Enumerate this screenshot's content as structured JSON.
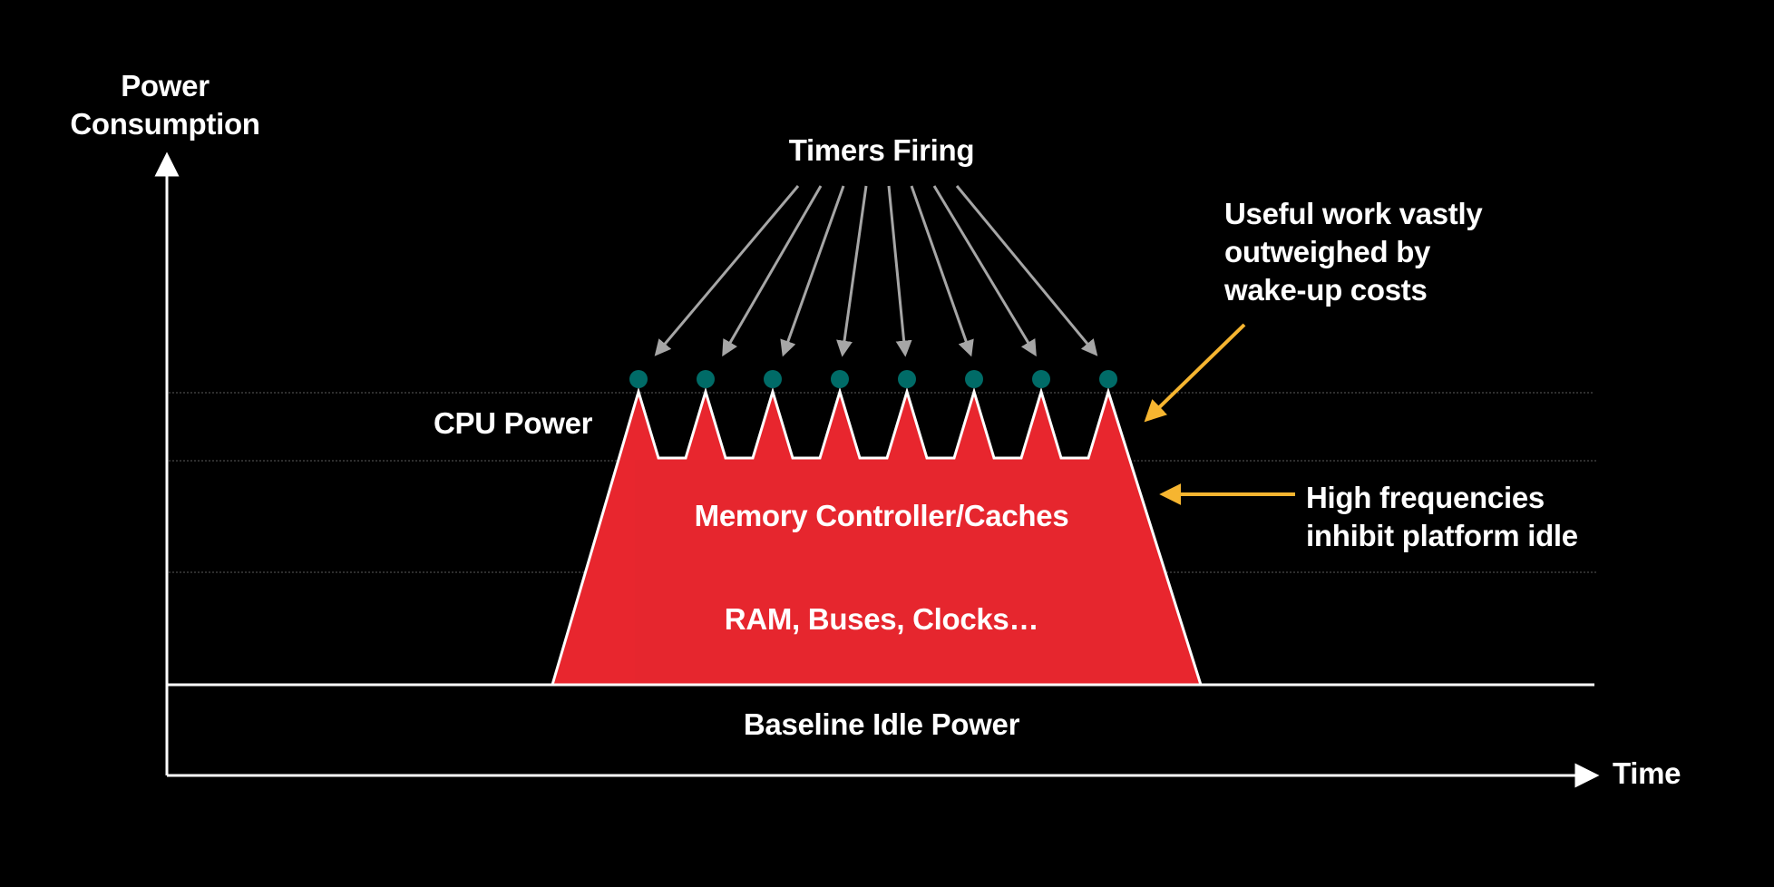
{
  "axes": {
    "y_label_lines": [
      "Power",
      "Consumption"
    ],
    "x_label": "Time"
  },
  "annotations": {
    "timers_firing": "Timers Firing",
    "useful_work_lines": [
      "Useful work vastly",
      "outweighed by",
      "wake-up costs"
    ],
    "high_freq_lines": [
      "High frequencies",
      "inhibit platform idle"
    ]
  },
  "layers": {
    "cpu": "CPU Power",
    "memory": "Memory Controller/Caches",
    "ram": "RAM, Buses, Clocks…",
    "baseline": "Baseline Idle Power"
  },
  "timer_count": 8,
  "colors": {
    "background": "#000000",
    "axis": "#ffffff",
    "power_fill": "#e8262e",
    "power_fill_inner": "#e4272f",
    "timer_dot": "#006b67",
    "timer_arrow": "#a6a6a6",
    "callout_arrow": "#f6b530",
    "guide_line": "#6a6a6a"
  }
}
